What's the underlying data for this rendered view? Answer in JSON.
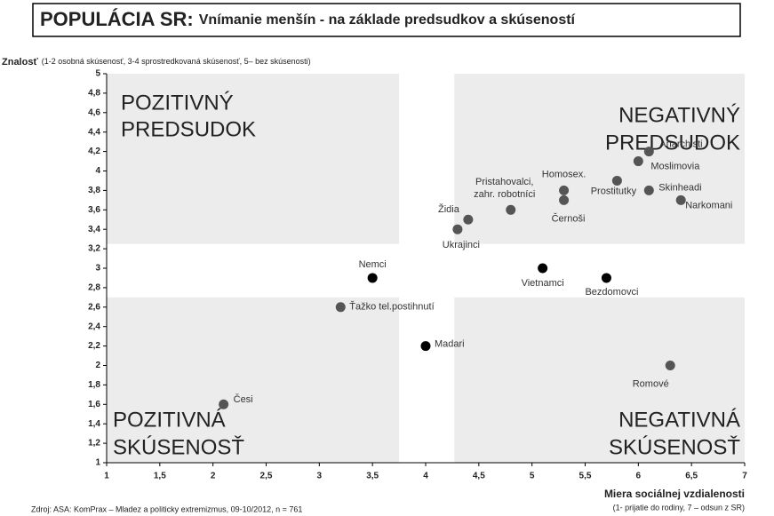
{
  "chart_data": {
    "type": "scatter",
    "title": "POPULÁCIA SR:",
    "subtitle": "Vnímanie menšín - na základe predsudkov a skúseností",
    "ylabel": "Znalosť",
    "ylabel_note": "(1-2 osobná skúsenosť, 3-4 sprostredkovaná skúsenosť, 5– bez skúsenosti)",
    "xlabel": "Miera sociálnej vzdialenosti",
    "xlabel_note": "(1- prijatie do rodiny, 7 – odsun z SR)",
    "source": "Zdroj: ASA: KomPrax – Mladez a politicky extremizmus, 09-10/2012, n = 761",
    "xlim": [
      1,
      7
    ],
    "ylim": [
      1,
      5
    ],
    "xticks": [
      1,
      {
        "value": 1.5,
        "label": "1,5"
      },
      2,
      {
        "value": 2.5,
        "label": "2,5"
      },
      3,
      {
        "value": 3.5,
        "label": "3,5"
      },
      4,
      {
        "value": 4.5,
        "label": "4,5"
      },
      5,
      {
        "value": 5.5,
        "label": "5,5"
      },
      6,
      {
        "value": 6.5,
        "label": "6,5"
      },
      7
    ],
    "yticks": [
      1,
      {
        "value": 1.2,
        "label": "1,2"
      },
      {
        "value": 1.4,
        "label": "1,4"
      },
      {
        "value": 1.6,
        "label": "1,6"
      },
      {
        "value": 1.8,
        "label": "1,8"
      },
      2,
      {
        "value": 2.2,
        "label": "2,2"
      },
      {
        "value": 2.4,
        "label": "2,4"
      },
      {
        "value": 2.6,
        "label": "2,6"
      },
      {
        "value": 2.8,
        "label": "2,8"
      },
      3,
      {
        "value": 3.2,
        "label": "3,2"
      },
      {
        "value": 3.4,
        "label": "3,4"
      },
      {
        "value": 3.6,
        "label": "3,6"
      },
      {
        "value": 3.8,
        "label": "3,8"
      },
      4,
      {
        "value": 4.2,
        "label": "4,2"
      },
      {
        "value": 4.4,
        "label": "4,4"
      },
      {
        "value": 4.6,
        "label": "4,6"
      },
      {
        "value": 4.8,
        "label": "4,8"
      },
      5
    ],
    "quadrant_color": "#ececec",
    "quadrants": [
      {
        "xlim": [
          1,
          3.75
        ],
        "ylim": [
          3.25,
          5
        ],
        "label": [
          "POZITIVNÝ",
          "PREDSUDOK"
        ]
      },
      {
        "xlim": [
          4.27,
          7
        ],
        "ylim": [
          3.25,
          5
        ],
        "label": [
          "NEGATIVNÝ",
          "PREDSUDOK"
        ]
      },
      {
        "xlim": [
          1,
          3.75
        ],
        "ylim": [
          1,
          2.7
        ],
        "label": [
          "POZITIVNÁ",
          "SKÚSENOSŤ"
        ]
      },
      {
        "xlim": [
          4.27,
          7
        ],
        "ylim": [
          1,
          2.7
        ],
        "label": [
          "NEGATIVNÁ",
          "SKÚSENOSŤ"
        ]
      }
    ],
    "labels": [
      "Anarchisti",
      "Moslimovia",
      "Skinheadi",
      "Prostitutky",
      "Narkomani",
      "Homosex.",
      "Černoši",
      [
        "Pristahovalci,",
        "zahr. robotníci"
      ],
      "Židia",
      "Ukrajinci",
      "Nemci",
      "Vietnamci",
      "Bezdomovci",
      "Ťažko tel.postihnutí",
      "Madari",
      "Romové",
      "Česi"
    ],
    "x": [
      6.1,
      6.0,
      6.1,
      5.8,
      6.4,
      5.3,
      5.3,
      4.8,
      4.4,
      4.3,
      3.5,
      5.1,
      5.7,
      3.2,
      4.0,
      6.3,
      2.1
    ],
    "y": [
      4.2,
      4.1,
      3.8,
      3.9,
      3.7,
      3.8,
      3.7,
      3.6,
      3.5,
      3.4,
      2.9,
      3.0,
      2.9,
      2.6,
      2.2,
      2.0,
      1.6
    ],
    "colors": [
      "#555555",
      "#555555",
      "#555555",
      "#555555",
      "#555555",
      "#555555",
      "#555555",
      "#555555",
      "#555555",
      "#555555",
      "#000000",
      "#000000",
      "#000000",
      "#555555",
      "#000000",
      "#555555",
      "#555555"
    ]
  }
}
